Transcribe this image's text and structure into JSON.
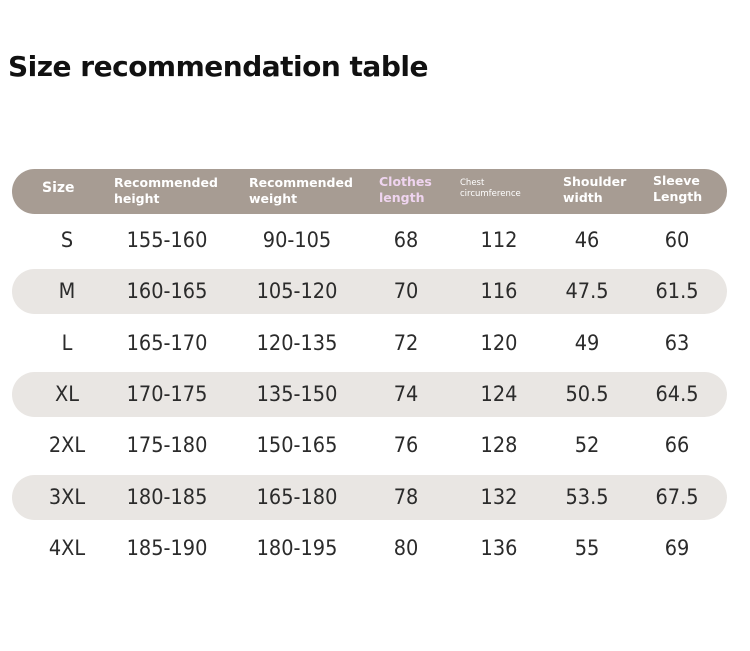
{
  "title": "Size recommendation table",
  "header": {
    "size": "Size",
    "height_line1": "Recommended",
    "height_line2": "height",
    "weight_line1": "Recommended",
    "weight_line2": "weight",
    "length_line1": "Clothes",
    "length_line2": "length",
    "chest_line1": "Chest",
    "chest_line2": "circumference",
    "shoulder_line1": "Shoulder",
    "shoulder_line2": "width",
    "sleeve_line1": "Sleeve",
    "sleeve_line2": "Length"
  },
  "colors": {
    "header_bg": "#a79c93",
    "header_text": "#ffffff",
    "header_accent": "#efd4ef",
    "row_shade": "#e9e6e3",
    "body_text": "#2b2b2b"
  },
  "rows": [
    {
      "size": "S",
      "height": "155-160",
      "weight": "90-105",
      "length": "68",
      "chest": "112",
      "shoulder": "46",
      "sleeve": "60"
    },
    {
      "size": "M",
      "height": "160-165",
      "weight": "105-120",
      "length": "70",
      "chest": "116",
      "shoulder": "47.5",
      "sleeve": "61.5"
    },
    {
      "size": "L",
      "height": "165-170",
      "weight": "120-135",
      "length": "72",
      "chest": "120",
      "shoulder": "49",
      "sleeve": "63"
    },
    {
      "size": "XL",
      "height": "170-175",
      "weight": "135-150",
      "length": "74",
      "chest": "124",
      "shoulder": "50.5",
      "sleeve": "64.5"
    },
    {
      "size": "2XL",
      "height": "175-180",
      "weight": "150-165",
      "length": "76",
      "chest": "128",
      "shoulder": "52",
      "sleeve": "66"
    },
    {
      "size": "3XL",
      "height": "180-185",
      "weight": "165-180",
      "length": "78",
      "chest": "132",
      "shoulder": "53.5",
      "sleeve": "67.5"
    },
    {
      "size": "4XL",
      "height": "185-190",
      "weight": "180-195",
      "length": "80",
      "chest": "136",
      "shoulder": "55",
      "sleeve": "69"
    }
  ]
}
